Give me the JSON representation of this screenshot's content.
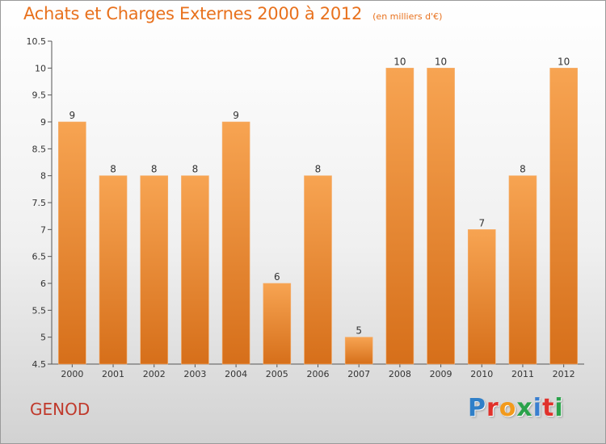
{
  "header": {
    "title": "Achats et Charges Externes 2000 à 2012",
    "subtitle": "(en milliers d'€)"
  },
  "footer": {
    "commune": "GENOD",
    "logo_letters": [
      "P",
      "r",
      "o",
      "x",
      "i",
      "t",
      "i"
    ],
    "logo_colors": [
      "#2f7fc8",
      "#e0312b",
      "#f29a1c",
      "#2aa24a",
      "#3a7fd0",
      "#e0312b",
      "#2aa24a"
    ]
  },
  "chart_data": {
    "type": "bar",
    "categories": [
      "2000",
      "2001",
      "2002",
      "2003",
      "2004",
      "2005",
      "2006",
      "2007",
      "2008",
      "2009",
      "2010",
      "2011",
      "2012"
    ],
    "values": [
      9,
      8,
      8,
      8,
      9,
      6,
      8,
      5,
      10,
      10,
      7,
      8,
      10
    ],
    "data_labels": [
      "9",
      "8",
      "8",
      "8",
      "9",
      "6",
      "8",
      "5",
      "10",
      "10",
      "7",
      "8",
      "10"
    ],
    "ylim": [
      4.5,
      10.5
    ],
    "yticks": [
      4.5,
      5,
      5.5,
      6,
      6.5,
      7,
      7.5,
      8,
      8.5,
      9,
      9.5,
      10,
      10.5
    ],
    "ytick_labels": [
      "4.5",
      "5",
      "5.5",
      "6",
      "6.5",
      "7",
      "7.5",
      "8",
      "8.5",
      "9",
      "9.5",
      "10",
      "10.5"
    ],
    "grid": false,
    "bar_color": "#f0903a"
  }
}
